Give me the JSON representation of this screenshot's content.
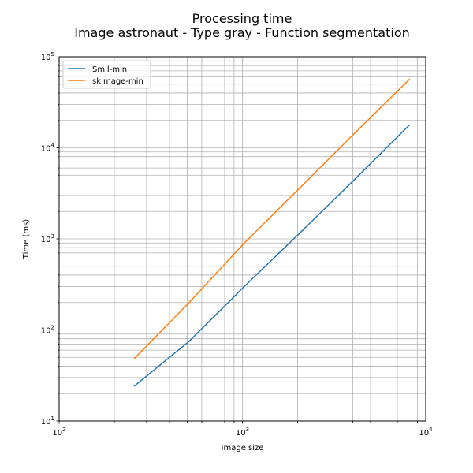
{
  "chart_data": {
    "type": "line",
    "title": [
      "Processing time",
      "Image astronaut - Type gray - Function segmentation"
    ],
    "xlabel": "Image size",
    "ylabel": "Time (ms)",
    "xscale": "log",
    "yscale": "log",
    "xlim": [
      100,
      10000
    ],
    "ylim": [
      10,
      100000
    ],
    "xticks": [
      {
        "value": 100,
        "base": "10",
        "exp": "2"
      },
      {
        "value": 1000,
        "base": "10",
        "exp": "3"
      },
      {
        "value": 10000,
        "base": "10",
        "exp": "4"
      }
    ],
    "yticks": [
      {
        "value": 10,
        "base": "10",
        "exp": "1"
      },
      {
        "value": 100,
        "base": "10",
        "exp": "2"
      },
      {
        "value": 1000,
        "base": "10",
        "exp": "3"
      },
      {
        "value": 10000,
        "base": "10",
        "exp": "4"
      },
      {
        "value": 100000,
        "base": "10",
        "exp": "5"
      }
    ],
    "grid": true,
    "legend_position": "upper-left",
    "series": [
      {
        "name": "Smil-min",
        "color": "#1f77b4",
        "x": [
          256,
          512,
          1024,
          2048,
          4096,
          8192
        ],
        "y": [
          24,
          75,
          300,
          1150,
          4500,
          18000
        ]
      },
      {
        "name": "skImage-min",
        "color": "#ff7f0e",
        "x": [
          256,
          512,
          1024,
          2048,
          4096,
          8192
        ],
        "y": [
          48,
          200,
          900,
          3600,
          14500,
          57000
        ]
      }
    ]
  }
}
